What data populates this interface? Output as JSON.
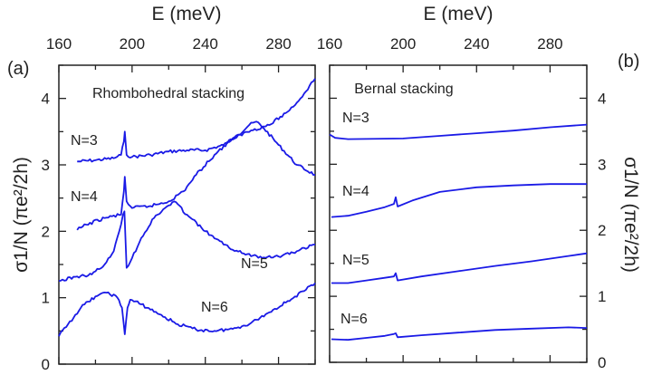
{
  "chart_data": [
    {
      "type": "line",
      "panel_label": "(a)",
      "title": "Rhombohedral stacking",
      "xlabel": "E (meV)",
      "ylabel": "σ1/N (πe²/2h)",
      "xlim": [
        160,
        300
      ],
      "ylim": [
        0,
        4.5
      ],
      "xticks": [
        160,
        200,
        240,
        280
      ],
      "yticks": [
        0,
        1,
        2,
        3,
        4
      ],
      "grid": false,
      "x_axis_position": "top",
      "y_axis_position": "left",
      "color": "#1a1ae6",
      "series": [
        {
          "name": "N=3",
          "x": [
            170,
            180,
            190,
            194,
            195.5,
            196,
            197,
            200,
            210,
            220,
            230,
            240,
            250,
            258,
            264,
            268,
            272,
            280,
            290,
            300
          ],
          "y": [
            3.05,
            3.07,
            3.1,
            3.15,
            3.35,
            3.5,
            3.15,
            3.12,
            3.15,
            3.2,
            3.22,
            3.22,
            3.3,
            3.45,
            3.6,
            3.65,
            3.55,
            3.3,
            3.0,
            2.85
          ]
        },
        {
          "name": "N=4",
          "x": [
            170,
            175,
            185,
            194,
            195.5,
            196,
            197,
            200,
            210,
            220,
            228,
            235,
            245,
            255,
            265,
            275,
            285,
            292,
            300
          ],
          "y": [
            2.02,
            2.1,
            2.2,
            2.25,
            2.6,
            2.82,
            2.45,
            2.35,
            2.38,
            2.45,
            2.6,
            2.85,
            3.15,
            3.4,
            3.52,
            3.6,
            3.8,
            4.0,
            4.3
          ]
        },
        {
          "name": "N=5",
          "x": [
            160,
            170,
            178,
            185,
            190,
            193,
            195,
            195.8,
            197,
            200,
            205,
            212,
            218,
            223,
            230,
            240,
            250,
            260,
            270,
            280,
            290,
            300
          ],
          "y": [
            1.25,
            1.32,
            1.35,
            1.5,
            1.7,
            2.0,
            2.25,
            2.3,
            1.45,
            1.6,
            1.9,
            2.2,
            2.35,
            2.45,
            2.25,
            2.0,
            1.8,
            1.67,
            1.62,
            1.62,
            1.7,
            1.8
          ]
        },
        {
          "name": "N=6",
          "x": [
            160,
            165,
            172,
            180,
            187,
            192,
            194.5,
            196,
            197.5,
            199,
            205,
            215,
            225,
            235,
            245,
            255,
            265,
            275,
            285,
            295,
            300
          ],
          "y": [
            0.42,
            0.6,
            0.85,
            1.02,
            1.08,
            1.0,
            0.85,
            0.45,
            0.85,
            0.97,
            0.9,
            0.75,
            0.6,
            0.52,
            0.5,
            0.53,
            0.62,
            0.78,
            0.95,
            1.12,
            1.22
          ]
        }
      ]
    },
    {
      "type": "line",
      "panel_label": "(b)",
      "title": "Bernal stacking",
      "xlabel": "E (meV)",
      "ylabel": "σ1/N (πe²/2h)",
      "xlim": [
        160,
        300
      ],
      "ylim": [
        0,
        4.5
      ],
      "xticks": [
        160,
        200,
        240,
        280
      ],
      "yticks": [
        0,
        1,
        2,
        3,
        4
      ],
      "grid": false,
      "x_axis_position": "top",
      "y_axis_position": "right",
      "color": "#1a1ae6",
      "series": [
        {
          "name": "N=3",
          "x": [
            160,
            163,
            170,
            200,
            220,
            240,
            260,
            280,
            300
          ],
          "y": [
            3.45,
            3.4,
            3.38,
            3.39,
            3.43,
            3.47,
            3.51,
            3.56,
            3.6
          ]
        },
        {
          "name": "N=4",
          "x": [
            161,
            170,
            180,
            190,
            195,
            196,
            197,
            205,
            220,
            240,
            260,
            280,
            300
          ],
          "y": [
            2.2,
            2.22,
            2.28,
            2.35,
            2.4,
            2.5,
            2.36,
            2.45,
            2.58,
            2.65,
            2.68,
            2.7,
            2.7
          ]
        },
        {
          "name": "N=5",
          "x": [
            161,
            170,
            180,
            190,
            195,
            196,
            197,
            210,
            230,
            250,
            270,
            290,
            300
          ],
          "y": [
            1.2,
            1.2,
            1.24,
            1.28,
            1.3,
            1.35,
            1.24,
            1.3,
            1.38,
            1.46,
            1.53,
            1.61,
            1.65
          ]
        },
        {
          "name": "N=6",
          "x": [
            161,
            170,
            180,
            190,
            195,
            196,
            197,
            210,
            230,
            250,
            270,
            290,
            300
          ],
          "y": [
            0.35,
            0.34,
            0.37,
            0.4,
            0.43,
            0.44,
            0.38,
            0.41,
            0.45,
            0.49,
            0.51,
            0.53,
            0.52
          ]
        }
      ]
    }
  ]
}
